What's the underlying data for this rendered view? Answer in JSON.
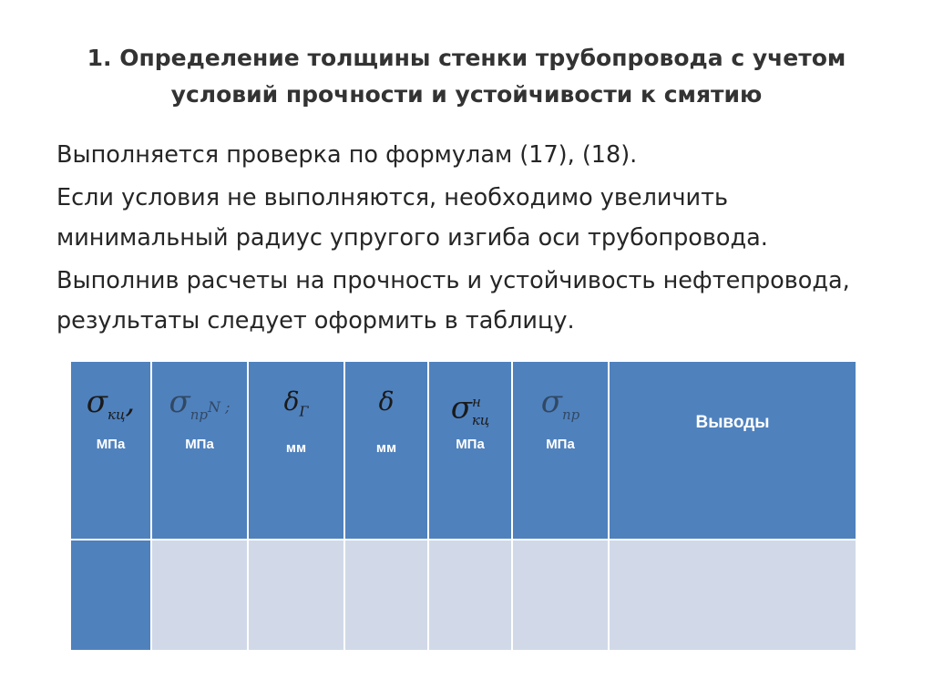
{
  "title": "1. Определение толщины стенки трубопровода с учетом условий прочности и устойчивости к смятию",
  "paragraphs": [
    "Выполняется проверка по формулам (17), (18).",
    "Если условия не выполняются, необходимо увеличить минимальный радиус упругого изгиба оси трубопровода.",
    "Выполнив расчеты на прочность и устойчивость нефтепровода, результаты следует оформить в таблицу."
  ],
  "table": {
    "columns": [
      {
        "symbol": "σ",
        "sub": "кц",
        "sup": "",
        "suffix": ",",
        "unit": "МПа"
      },
      {
        "symbol": "σ",
        "sub": "пр",
        "sup": "",
        "suffix": "N ;",
        "unit": "МПа"
      },
      {
        "symbol": "δ",
        "sub": "Г",
        "sup": "",
        "suffix": "",
        "unit": "мм"
      },
      {
        "symbol": "δ",
        "sub": "",
        "sup": "",
        "suffix": "",
        "unit": "мм"
      },
      {
        "symbol": "σ",
        "sub": "кц",
        "sup": "н",
        "suffix": "",
        "unit": "МПа"
      },
      {
        "symbol": "σ",
        "sub": "пр",
        "sup": "",
        "suffix": "",
        "unit": "МПа"
      }
    ],
    "conclusions_header": "Выводы"
  },
  "colors": {
    "header_fill": "#4f81bd",
    "row_fill": "#d1d9e8",
    "text_title": "#333333",
    "header_text": "#ffffff"
  }
}
